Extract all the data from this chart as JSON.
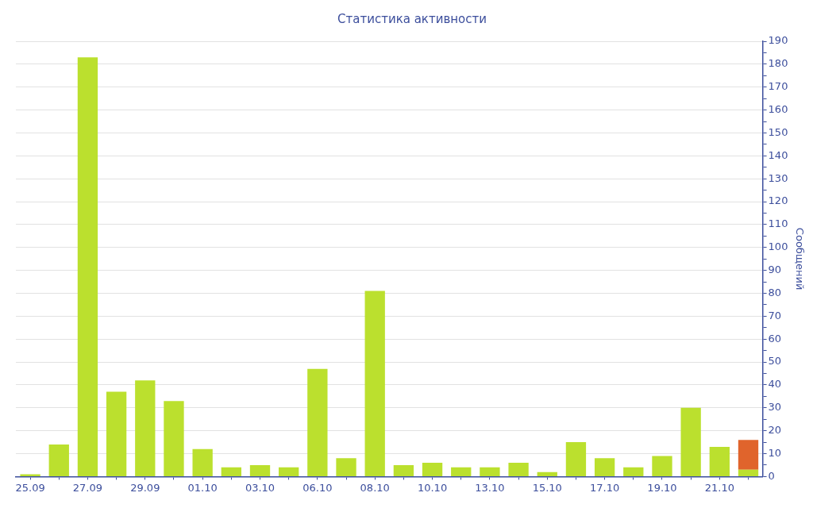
{
  "chart_data": {
    "type": "bar",
    "title": "Статистика активности",
    "y2label": "Сообщений",
    "categories": [
      "25.09",
      null,
      "27.09",
      null,
      "29.09",
      null,
      "01.10",
      null,
      "03.10",
      null,
      "06.10",
      null,
      "08.10",
      null,
      "10.10",
      null,
      "13.10",
      null,
      "15.10",
      null,
      "17.10",
      null,
      "19.10",
      null,
      "21.10",
      null
    ],
    "stacked": true,
    "grid": "y",
    "legend": false,
    "series": [
      {
        "color": "#bbe02e",
        "axis": "y2",
        "values": [
          1,
          14,
          183,
          37,
          42,
          33,
          12,
          4,
          5,
          4,
          47,
          8,
          81,
          5,
          6,
          4,
          4,
          6,
          2,
          15,
          8,
          4,
          9,
          30,
          13,
          3
        ]
      },
      {
        "color": "#e0642c",
        "axis": "y2",
        "values": [
          null,
          null,
          null,
          null,
          null,
          null,
          null,
          null,
          null,
          null,
          null,
          null,
          null,
          null,
          null,
          null,
          null,
          null,
          null,
          null,
          null,
          null,
          null,
          null,
          null,
          13
        ]
      }
    ],
    "y2lim": [
      0,
      190
    ],
    "y2ticks": [
      0,
      {
        "value": 5,
        "label": null
      },
      10,
      {
        "value": 15,
        "label": null
      },
      20,
      {
        "value": 25,
        "label": null
      },
      30,
      {
        "value": 35,
        "label": null
      },
      40,
      {
        "value": 45,
        "label": null
      },
      50,
      {
        "value": 55,
        "label": null
      },
      60,
      {
        "value": 65,
        "label": null
      },
      70,
      {
        "value": 75,
        "label": null
      },
      80,
      {
        "value": 85,
        "label": null
      },
      90,
      {
        "value": 95,
        "label": null
      },
      100,
      {
        "value": 105,
        "label": null
      },
      110,
      {
        "value": 115,
        "label": null
      },
      120,
      {
        "value": 125,
        "label": null
      },
      130,
      {
        "value": 135,
        "label": null
      },
      140,
      {
        "value": 145,
        "label": null
      },
      150,
      {
        "value": 155,
        "label": null
      },
      160,
      {
        "value": 165,
        "label": null
      },
      170,
      {
        "value": 175,
        "label": null
      },
      180,
      {
        "value": 185,
        "label": null
      },
      190
    ]
  }
}
